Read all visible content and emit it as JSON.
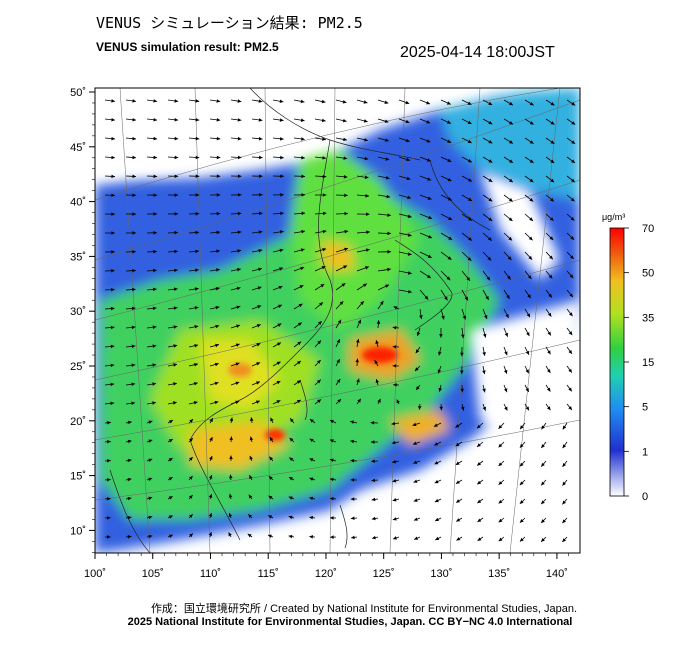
{
  "header": {
    "title_jp": "VENUS シミュレーション結果: PM2.5",
    "title_en": "VENUS simulation result: PM2.5",
    "timestamp": "2025-04-14 18:00JST"
  },
  "map": {
    "lon_ticks": [
      "100˚",
      "105˚",
      "110˚",
      "115˚",
      "120˚",
      "125˚",
      "130˚",
      "135˚",
      "140˚"
    ],
    "lat_ticks": [
      "50˚",
      "45˚",
      "40˚",
      "35˚",
      "30˚",
      "25˚",
      "20˚",
      "15˚",
      "10˚"
    ],
    "colors": {
      "frame": "#000000",
      "land_bg": "#ffffff"
    }
  },
  "legend": {
    "unit": "μg/m³",
    "ticks": [
      "70",
      "50",
      "35",
      "15",
      "5",
      "1",
      "0"
    ],
    "colors": [
      "#ffffff",
      "#2030d0",
      "#2090f0",
      "#20d0a0",
      "#50e020",
      "#e0f020",
      "#f0a020",
      "#ff2000"
    ]
  },
  "footer": {
    "credit_1": "作成：国立環境研究所 / Created by National Institute for Environmental Studies, Japan.",
    "credit_2": "2025 National Institute for Environmental Studies, Japan. CC BY−NC 4.0 International"
  }
}
